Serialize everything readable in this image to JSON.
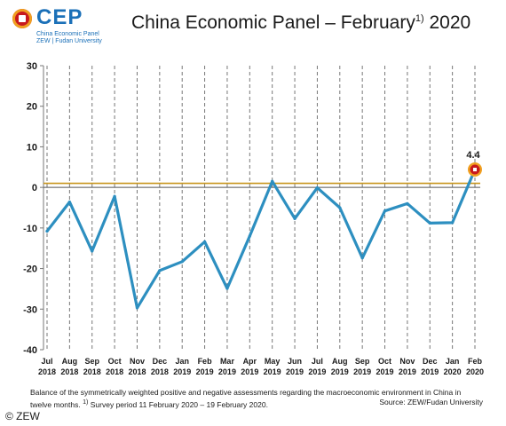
{
  "logo": {
    "name": "CEP",
    "sub1": "China Economic Panel",
    "sub2": "ZEW | Fudan University"
  },
  "title": {
    "main": "China Economic Panel – February",
    "footnote_mark": "1)",
    "year": "2020"
  },
  "caption": {
    "line1": "Balance of the symmetrically weighted positive and negative assessments regarding the macroeconomic environment in China in",
    "line2": "twelve months.",
    "footnote_mark": "1)",
    "footnote": "Survey period 11 February 2020 – 19 February 2020.",
    "source": "Source: ZEW/Fudan University"
  },
  "copyright": "© ZEW",
  "colors": {
    "line": "#2d8fc0",
    "reference_line": "#c8961e",
    "zero_line": "#555555",
    "grid": "#777777",
    "marker_fill": "#c8191d",
    "marker_ring": "#f0a020"
  },
  "chart_data": {
    "type": "line",
    "categories": [
      [
        "Jul",
        "2018"
      ],
      [
        "Aug",
        "2018"
      ],
      [
        "Sep",
        "2018"
      ],
      [
        "Oct",
        "2018"
      ],
      [
        "Nov",
        "2018"
      ],
      [
        "Dec",
        "2018"
      ],
      [
        "Jan",
        "2019"
      ],
      [
        "Feb",
        "2019"
      ],
      [
        "Mar",
        "2019"
      ],
      [
        "Apr",
        "2019"
      ],
      [
        "May",
        "2019"
      ],
      [
        "Jun",
        "2019"
      ],
      [
        "Jul",
        "2019"
      ],
      [
        "Aug",
        "2019"
      ],
      [
        "Sep",
        "2019"
      ],
      [
        "Oct",
        "2019"
      ],
      [
        "Nov",
        "2019"
      ],
      [
        "Dec",
        "2019"
      ],
      [
        "Jan",
        "2020"
      ],
      [
        "Feb",
        "2020"
      ]
    ],
    "values": [
      -10.8,
      -3.6,
      -15.7,
      -2.2,
      -29.7,
      -20.5,
      -18.3,
      -13.4,
      -24.9,
      -12.0,
      1.5,
      -7.7,
      -0.1,
      -5.0,
      -17.4,
      -5.8,
      -4.0,
      -8.8,
      -8.7,
      4.4
    ],
    "ylim": [
      -40,
      30
    ],
    "yticks": [
      -40,
      -30,
      -20,
      -10,
      0,
      10,
      20,
      30
    ],
    "reference_line": 1.0,
    "grid": "vertical-dashed",
    "annotation": {
      "label": "4.4",
      "index": 19
    }
  }
}
